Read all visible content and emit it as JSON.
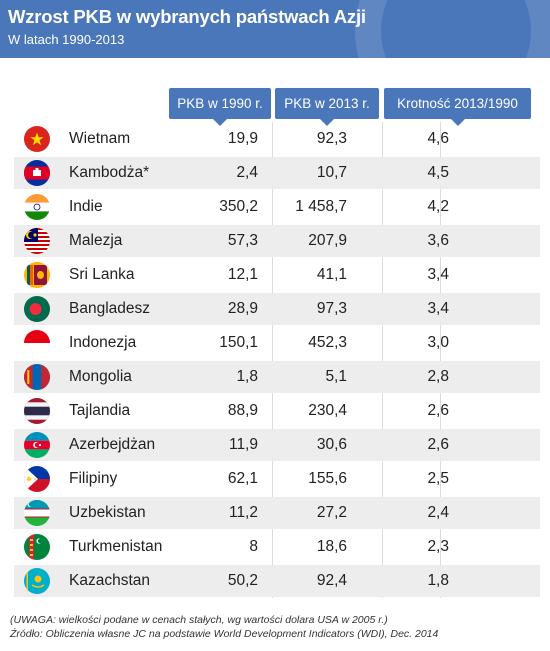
{
  "header": {
    "title": "Wzrost PKB w wybranych państwach Azji",
    "subtitle": "W latach 1990-2013"
  },
  "chart_data": {
    "type": "table",
    "columns": [
      "PKB w 1990 r.",
      "PKB w 2013 r.",
      "Krotność 2013/1990"
    ],
    "rows": [
      {
        "country": "Wietnam",
        "flag": "vietnam-flag",
        "v1990": "19,9",
        "v2013": "92,3",
        "ratio": "4,6"
      },
      {
        "country": "Kambodża*",
        "flag": "cambodia-flag",
        "v1990": "2,4",
        "v2013": "10,7",
        "ratio": "4,5"
      },
      {
        "country": "Indie",
        "flag": "india-flag",
        "v1990": "350,2",
        "v2013": "1 458,7",
        "ratio": "4,2"
      },
      {
        "country": "Malezja",
        "flag": "malaysia-flag",
        "v1990": "57,3",
        "v2013": "207,9",
        "ratio": "3,6"
      },
      {
        "country": "Sri Lanka",
        "flag": "sri-lanka-flag",
        "v1990": "12,1",
        "v2013": "41,1",
        "ratio": "3,4"
      },
      {
        "country": "Bangladesz",
        "flag": "bangladesh-flag",
        "v1990": "28,9",
        "v2013": "97,3",
        "ratio": "3,4"
      },
      {
        "country": "Indonezja",
        "flag": "indonesia-flag",
        "v1990": "150,1",
        "v2013": "452,3",
        "ratio": "3,0"
      },
      {
        "country": "Mongolia",
        "flag": "mongolia-flag",
        "v1990": "1,8",
        "v2013": "5,1",
        "ratio": "2,8"
      },
      {
        "country": "Tajlandia",
        "flag": "thailand-flag",
        "v1990": "88,9",
        "v2013": "230,4",
        "ratio": "2,6"
      },
      {
        "country": "Azerbejdżan",
        "flag": "azerbaijan-flag",
        "v1990": "11,9",
        "v2013": "30,6",
        "ratio": "2,6"
      },
      {
        "country": "Filipiny",
        "flag": "philippines-flag",
        "v1990": "62,1",
        "v2013": "155,6",
        "ratio": "2,5"
      },
      {
        "country": "Uzbekistan",
        "flag": "uzbekistan-flag",
        "v1990": "11,2",
        "v2013": "27,2",
        "ratio": "2,4"
      },
      {
        "country": "Turkmenistan",
        "flag": "turkmenistan-flag",
        "v1990": "8",
        "v2013": "18,6",
        "ratio": "2,3"
      },
      {
        "country": "Kazachstan",
        "flag": "kazakhstan-flag",
        "v1990": "50,2",
        "v2013": "92,4",
        "ratio": "1,8"
      }
    ]
  },
  "footer": {
    "note": "(UWAGA: wielkości podane w cenach stałych, wg wartości dolara USA w 2005 r.)",
    "source": "Źródło: Obliczenia własne JC na podstawie World Development Indicators (WDI), Dec. 2014"
  },
  "colors": {
    "accent": "#4a76ba",
    "stripe": "#ededed"
  }
}
